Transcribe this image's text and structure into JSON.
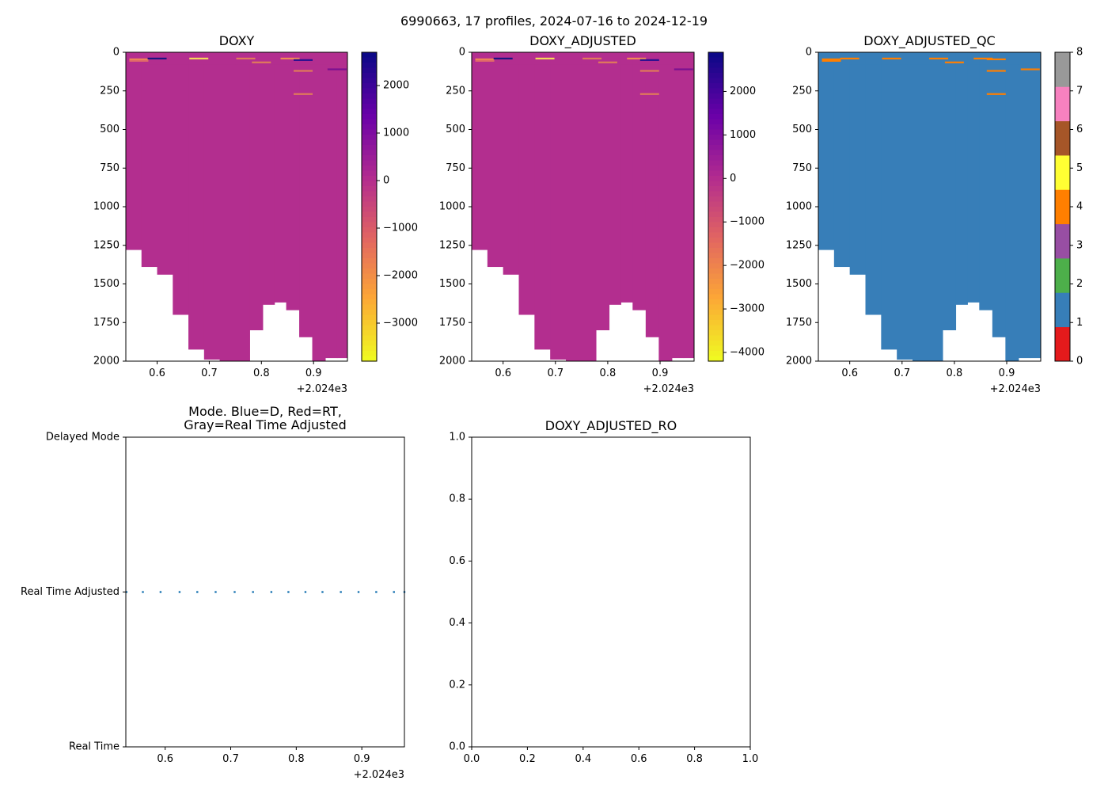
{
  "figure": {
    "suptitle": "6990663, 17 profiles, 2024-07-16 to 2024-12-19"
  },
  "chart_data": [
    {
      "id": "doxy",
      "type": "heatmap",
      "title": "DOXY",
      "x_offset_label": "+2.024e3",
      "x_ticks": [
        0.6,
        0.7,
        0.8,
        0.9
      ],
      "x_tick_labels": [
        "0.6",
        "0.7",
        "0.8",
        "0.9"
      ],
      "xlim": [
        0.54,
        0.965
      ],
      "y_ticks": [
        0,
        250,
        500,
        750,
        1000,
        1250,
        1500,
        1750,
        2000
      ],
      "y_tick_labels": [
        "0",
        "250",
        "500",
        "750",
        "1000",
        "1250",
        "1500",
        "1750",
        "2000"
      ],
      "ylim": [
        2000,
        0
      ],
      "colorbar": {
        "cmap": "plasma_r",
        "min": -3800,
        "max": 2700,
        "ticks": [
          2000,
          1000,
          0,
          -1000,
          -2000,
          -3000
        ],
        "tick_labels": [
          "2000",
          "1000",
          "0",
          "−1000",
          "−2000",
          "−3000"
        ]
      },
      "fill_color": "#b32e8f",
      "profile_x": [
        0.555,
        0.585,
        0.615,
        0.645,
        0.675,
        0.705,
        0.735,
        0.765,
        0.79,
        0.815,
        0.835,
        0.86,
        0.885,
        0.91,
        0.935,
        0.955
      ],
      "profile_max_depth": [
        1280,
        1390,
        1440,
        1700,
        1925,
        1990,
        2005,
        2000,
        1800,
        1635,
        1620,
        1670,
        1845,
        2000,
        1980,
        1980
      ],
      "streaks": [
        {
          "x": 0.565,
          "depth": 45,
          "color": "#f08a55"
        },
        {
          "x": 0.565,
          "depth": 55,
          "color": "#e06a6a"
        },
        {
          "x": 0.6,
          "depth": 40,
          "color": "#1d1380"
        },
        {
          "x": 0.68,
          "depth": 40,
          "color": "#f6d85a"
        },
        {
          "x": 0.77,
          "depth": 40,
          "color": "#e07a5a"
        },
        {
          "x": 0.8,
          "depth": 65,
          "color": "#e07a5a"
        },
        {
          "x": 0.855,
          "depth": 40,
          "color": "#f08a55"
        },
        {
          "x": 0.88,
          "depth": 50,
          "color": "#2a1090"
        },
        {
          "x": 0.88,
          "depth": 120,
          "color": "#e07a5a"
        },
        {
          "x": 0.88,
          "depth": 270,
          "color": "#e07a5a"
        },
        {
          "x": 0.945,
          "depth": 110,
          "color": "#7a1090"
        }
      ]
    },
    {
      "id": "doxy_adjusted",
      "type": "heatmap",
      "title": "DOXY_ADJUSTED",
      "x_offset_label": "+2.024e3",
      "x_ticks": [
        0.6,
        0.7,
        0.8,
        0.9
      ],
      "x_tick_labels": [
        "0.6",
        "0.7",
        "0.8",
        "0.9"
      ],
      "xlim": [
        0.54,
        0.965
      ],
      "y_ticks": [
        0,
        250,
        500,
        750,
        1000,
        1250,
        1500,
        1750,
        2000
      ],
      "y_tick_labels": [
        "0",
        "250",
        "500",
        "750",
        "1000",
        "1250",
        "1500",
        "1750",
        "2000"
      ],
      "ylim": [
        2000,
        0
      ],
      "colorbar": {
        "cmap": "plasma_r",
        "min": -4200,
        "max": 2900,
        "ticks": [
          2000,
          1000,
          0,
          -1000,
          -2000,
          -3000,
          -4000
        ],
        "tick_labels": [
          "2000",
          "1000",
          "0",
          "−1000",
          "−2000",
          "−3000",
          "−4000"
        ]
      },
      "fill_color": "#b32e8f",
      "profile_x": [
        0.555,
        0.585,
        0.615,
        0.645,
        0.675,
        0.705,
        0.735,
        0.765,
        0.79,
        0.815,
        0.835,
        0.86,
        0.885,
        0.91,
        0.935,
        0.955
      ],
      "profile_max_depth": [
        1280,
        1390,
        1440,
        1700,
        1925,
        1990,
        2005,
        2000,
        1800,
        1635,
        1620,
        1670,
        1845,
        2000,
        1980,
        1980
      ],
      "streaks": [
        {
          "x": 0.565,
          "depth": 45,
          "color": "#f08a55"
        },
        {
          "x": 0.565,
          "depth": 55,
          "color": "#e06a6a"
        },
        {
          "x": 0.6,
          "depth": 40,
          "color": "#1d1380"
        },
        {
          "x": 0.68,
          "depth": 40,
          "color": "#f6d85a"
        },
        {
          "x": 0.77,
          "depth": 40,
          "color": "#e07a5a"
        },
        {
          "x": 0.8,
          "depth": 65,
          "color": "#e07a5a"
        },
        {
          "x": 0.855,
          "depth": 40,
          "color": "#f08a55"
        },
        {
          "x": 0.88,
          "depth": 50,
          "color": "#2a1090"
        },
        {
          "x": 0.88,
          "depth": 120,
          "color": "#e07a5a"
        },
        {
          "x": 0.88,
          "depth": 270,
          "color": "#e07a5a"
        },
        {
          "x": 0.945,
          "depth": 110,
          "color": "#7a1090"
        }
      ]
    },
    {
      "id": "doxy_adjusted_qc",
      "type": "heatmap",
      "title": "DOXY_ADJUSTED_QC",
      "x_offset_label": "+2.024e3",
      "x_ticks": [
        0.6,
        0.7,
        0.8,
        0.9
      ],
      "x_tick_labels": [
        "0.6",
        "0.7",
        "0.8",
        "0.9"
      ],
      "xlim": [
        0.54,
        0.965
      ],
      "y_ticks": [
        0,
        250,
        500,
        750,
        1000,
        1250,
        1500,
        1750,
        2000
      ],
      "y_tick_labels": [
        "0",
        "250",
        "500",
        "750",
        "1000",
        "1250",
        "1500",
        "1750",
        "2000"
      ],
      "ylim": [
        2000,
        0
      ],
      "colorbar": {
        "cmap": "qc_categorical",
        "min": 0,
        "max": 8,
        "ticks": [
          0,
          1,
          2,
          3,
          4,
          5,
          6,
          7,
          8
        ],
        "tick_labels": [
          "0",
          "1",
          "2",
          "3",
          "4",
          "5",
          "6",
          "7",
          "8"
        ],
        "category_colors": [
          "#e41a1c",
          "#377eb8",
          "#4daf4a",
          "#984ea3",
          "#ff7f00",
          "#ffff33",
          "#a65628",
          "#f781bf",
          "#999999"
        ]
      },
      "fill_color": "#377eb8",
      "profile_x": [
        0.555,
        0.585,
        0.615,
        0.645,
        0.675,
        0.705,
        0.735,
        0.765,
        0.79,
        0.815,
        0.835,
        0.86,
        0.885,
        0.91,
        0.935,
        0.955
      ],
      "profile_max_depth": [
        1280,
        1390,
        1440,
        1700,
        1925,
        1990,
        2005,
        2000,
        1800,
        1635,
        1620,
        1670,
        1845,
        2000,
        1980,
        1980
      ],
      "streaks": [
        {
          "x": 0.565,
          "depth": 45,
          "color": "#ff7f00"
        },
        {
          "x": 0.565,
          "depth": 55,
          "color": "#ff7f00"
        },
        {
          "x": 0.6,
          "depth": 40,
          "color": "#ff7f00"
        },
        {
          "x": 0.68,
          "depth": 40,
          "color": "#ff7f00"
        },
        {
          "x": 0.77,
          "depth": 40,
          "color": "#ff7f00"
        },
        {
          "x": 0.8,
          "depth": 65,
          "color": "#ff7f00"
        },
        {
          "x": 0.855,
          "depth": 40,
          "color": "#ff7f00"
        },
        {
          "x": 0.88,
          "depth": 45,
          "color": "#ff7f00"
        },
        {
          "x": 0.88,
          "depth": 120,
          "color": "#ff7f00"
        },
        {
          "x": 0.88,
          "depth": 270,
          "color": "#ff7f00"
        },
        {
          "x": 0.945,
          "depth": 110,
          "color": "#ff7f00"
        }
      ]
    },
    {
      "id": "mode",
      "type": "scatter",
      "title_line1": "Mode. Blue=D, Red=RT,",
      "title_line2": "Gray=Real Time Adjusted",
      "x_offset_label": "+2.024e3",
      "x_ticks": [
        0.6,
        0.7,
        0.8,
        0.9
      ],
      "x_tick_labels": [
        "0.6",
        "0.7",
        "0.8",
        "0.9"
      ],
      "xlim": [
        0.54,
        0.965
      ],
      "y_ticks": [
        0,
        1,
        2
      ],
      "y_tick_labels": [
        "Real Time",
        "Real Time Adjusted",
        "Delayed Mode"
      ],
      "ylim": [
        0,
        2
      ],
      "point_color": "#1f77b4",
      "x": [
        0.541,
        0.566,
        0.593,
        0.622,
        0.649,
        0.677,
        0.706,
        0.734,
        0.762,
        0.788,
        0.814,
        0.84,
        0.868,
        0.895,
        0.922,
        0.949,
        0.965
      ],
      "y": [
        1,
        1,
        1,
        1,
        1,
        1,
        1,
        1,
        1,
        1,
        1,
        1,
        1,
        1,
        1,
        1,
        1
      ]
    },
    {
      "id": "doxy_adjusted_ro",
      "type": "scatter",
      "title": "DOXY_ADJUSTED_RO",
      "x_ticks": [
        0.0,
        0.2,
        0.4,
        0.6,
        0.8,
        1.0
      ],
      "x_tick_labels": [
        "0.0",
        "0.2",
        "0.4",
        "0.6",
        "0.8",
        "1.0"
      ],
      "xlim": [
        0,
        1
      ],
      "y_ticks": [
        0.0,
        0.2,
        0.4,
        0.6,
        0.8,
        1.0
      ],
      "y_tick_labels": [
        "0.0",
        "0.2",
        "0.4",
        "0.6",
        "0.8",
        "1.0"
      ],
      "ylim": [
        0,
        1
      ],
      "x": [],
      "y": []
    }
  ]
}
